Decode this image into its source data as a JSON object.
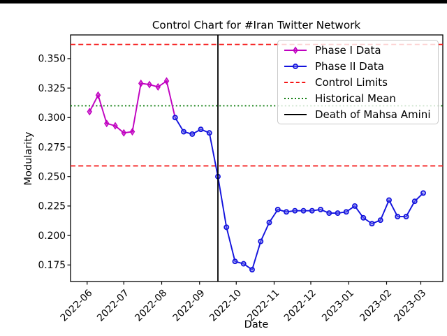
{
  "figure": {
    "title": "Control Chart for #Iran Twitter Network",
    "xlabel": "Date",
    "ylabel": "Modularity"
  },
  "chart_data": {
    "type": "line",
    "title": "Control Chart for #Iran Twitter Network",
    "xlabel": "Date",
    "ylabel": "Modularity",
    "x_tick_labels": [
      "2022-06",
      "2022-07",
      "2022-08",
      "2022-09",
      "2022-10",
      "2022-11",
      "2022-12",
      "2023-01",
      "2023-02",
      "2023-03"
    ],
    "x_tick_dates": [
      "2022-06-01",
      "2022-07-01",
      "2022-08-01",
      "2022-09-01",
      "2022-10-01",
      "2022-11-01",
      "2022-12-01",
      "2023-01-01",
      "2023-02-01",
      "2023-03-01"
    ],
    "y_tick_labels": [
      "0.350",
      "0.325",
      "0.300",
      "0.275",
      "0.250",
      "0.225",
      "0.200",
      "0.175"
    ],
    "y_ticks": [
      0.35,
      0.325,
      0.3,
      0.275,
      0.25,
      0.225,
      0.2,
      0.175
    ],
    "ylim": [
      0.161,
      0.37
    ],
    "grid": false,
    "legend_position": "upper right",
    "series": [
      {
        "name": "Phase I Data",
        "color": "#c000c0",
        "marker": "thin-diamond",
        "dates": [
          "2022-06-03",
          "2022-06-10",
          "2022-06-17",
          "2022-06-24",
          "2022-07-01",
          "2022-07-08",
          "2022-07-15",
          "2022-07-22",
          "2022-07-29",
          "2022-08-05"
        ],
        "values": [
          0.305,
          0.319,
          0.295,
          0.293,
          0.287,
          0.288,
          0.329,
          0.328,
          0.326,
          0.331
        ]
      },
      {
        "name": "Phase II Data",
        "color": "#1212dd",
        "marker": "circle",
        "dates": [
          "2022-08-12",
          "2022-08-19",
          "2022-08-26",
          "2022-09-02",
          "2022-09-09",
          "2022-09-16",
          "2022-09-23",
          "2022-09-30",
          "2022-10-07",
          "2022-10-14",
          "2022-10-21",
          "2022-10-28",
          "2022-11-04",
          "2022-11-11",
          "2022-11-18",
          "2022-11-25",
          "2022-12-02",
          "2022-12-09",
          "2022-12-16",
          "2022-12-23",
          "2022-12-30",
          "2023-01-06",
          "2023-01-13",
          "2023-01-20",
          "2023-01-27",
          "2023-02-03",
          "2023-02-10",
          "2023-02-17",
          "2023-02-24",
          "2023-03-03"
        ],
        "values": [
          0.3,
          0.288,
          0.286,
          0.29,
          0.287,
          0.25,
          0.207,
          0.178,
          0.176,
          0.171,
          0.195,
          0.211,
          0.222,
          0.22,
          0.221,
          0.221,
          0.221,
          0.222,
          0.219,
          0.219,
          0.22,
          0.225,
          0.215,
          0.21,
          0.213,
          0.23,
          0.216,
          0.216,
          0.229,
          0.236
        ]
      }
    ],
    "connector_between_phases": true,
    "reference_lines": [
      {
        "label": "Control Limits",
        "role": "upper-control-limit",
        "value": 0.362,
        "color": "#f51515",
        "style": "dashed"
      },
      {
        "label": "Control Limits",
        "role": "lower-control-limit",
        "value": 0.259,
        "color": "#f51515",
        "style": "dashed"
      },
      {
        "label": "Historical Mean",
        "role": "historical-mean",
        "value": 0.31,
        "color": "#0f7d0f",
        "style": "dotted"
      }
    ],
    "event_line": {
      "label": "Death of Mahsa Amini",
      "date": "2022-09-16",
      "color": "#000000",
      "style": "solid"
    },
    "legend": [
      {
        "label": "Phase I Data",
        "color": "#c000c0",
        "style": "solid-diamond"
      },
      {
        "label": "Phase II Data",
        "color": "#1212dd",
        "style": "solid-circle"
      },
      {
        "label": "Control Limits",
        "color": "#f51515",
        "style": "dashed"
      },
      {
        "label": "Historical Mean",
        "color": "#0f7d0f",
        "style": "dotted"
      },
      {
        "label": "Death of Mahsa Amini",
        "color": "#000000",
        "style": "solid"
      }
    ]
  }
}
